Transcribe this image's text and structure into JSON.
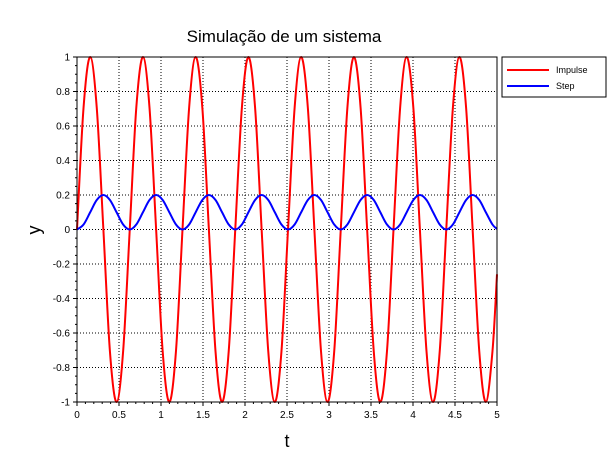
{
  "chart_data": {
    "type": "line",
    "title": "Simulação de um sistema",
    "xlabel": "t",
    "ylabel": "y",
    "xlim": [
      0,
      5
    ],
    "ylim": [
      -1,
      1
    ],
    "x_ticks": [
      "0",
      "0.5",
      "1",
      "1.5",
      "2",
      "2.5",
      "3",
      "3.5",
      "4",
      "4.5",
      "5"
    ],
    "y_ticks": [
      "-1",
      "-0.8",
      "-0.6",
      "-0.4",
      "-0.2",
      "0",
      "0.2",
      "0.4",
      "0.6",
      "0.8",
      "1"
    ],
    "grid": true,
    "legend_position": "outside-top-right",
    "series": [
      {
        "name": "Impulse",
        "color": "#ff0000",
        "x": [
          0,
          0.078,
          0.157,
          0.235,
          0.314,
          0.392,
          0.471,
          0.549,
          0.628,
          0.706,
          0.785,
          0.863,
          0.942,
          1.02,
          1.099,
          1.178,
          1.256,
          1.335,
          1.413,
          1.492,
          1.57,
          1.649,
          1.727,
          1.806,
          1.884,
          1.963,
          2.041,
          2.12,
          2.198,
          2.277,
          2.355,
          2.434,
          2.512,
          2.591,
          2.669,
          2.748,
          2.826,
          2.905,
          2.983,
          3.062,
          3.14,
          3.219,
          3.297,
          3.376,
          3.454,
          3.533,
          3.611,
          3.69,
          3.768,
          3.847,
          3.925,
          4.004,
          4.082,
          4.161,
          4.239,
          4.318,
          4.396,
          4.475,
          4.553,
          4.632,
          4.71,
          4.789,
          4.867,
          4.946,
          5.0
        ],
        "y": [
          0,
          0.707,
          1,
          0.707,
          0,
          -0.707,
          -1,
          -0.707,
          0,
          0.707,
          1,
          0.707,
          0,
          -0.707,
          -1,
          -0.707,
          0,
          0.707,
          1,
          0.707,
          0,
          -0.707,
          -1,
          -0.707,
          0,
          0.707,
          1,
          0.707,
          0,
          -0.707,
          -1,
          -0.707,
          0,
          0.707,
          1,
          0.707,
          0,
          -0.707,
          -1,
          -0.707,
          0,
          0.707,
          1,
          0.707,
          0,
          -0.707,
          -1,
          -0.707,
          0,
          0.707,
          1,
          0.707,
          0,
          -0.707,
          -1,
          -0.707,
          0,
          0.707,
          1,
          0.707,
          0,
          -0.707,
          -1,
          -0.707,
          -0.26
        ]
      },
      {
        "name": "Step",
        "color": "#0000ff",
        "x": [
          0,
          0.078,
          0.157,
          0.235,
          0.314,
          0.392,
          0.471,
          0.549,
          0.628,
          0.706,
          0.785,
          0.863,
          0.942,
          1.02,
          1.099,
          1.178,
          1.256,
          1.335,
          1.413,
          1.492,
          1.57,
          1.649,
          1.727,
          1.806,
          1.884,
          1.963,
          2.041,
          2.12,
          2.198,
          2.277,
          2.355,
          2.434,
          2.512,
          2.591,
          2.669,
          2.748,
          2.826,
          2.905,
          2.983,
          3.062,
          3.14,
          3.219,
          3.297,
          3.376,
          3.454,
          3.533,
          3.611,
          3.69,
          3.768,
          3.847,
          3.925,
          4.004,
          4.082,
          4.161,
          4.239,
          4.318,
          4.396,
          4.475,
          4.553,
          4.632,
          4.71,
          4.789,
          4.867,
          4.946,
          5.0
        ],
        "y": [
          0,
          0.029,
          0.1,
          0.171,
          0.2,
          0.171,
          0.1,
          0.029,
          0,
          0.029,
          0.1,
          0.171,
          0.2,
          0.171,
          0.1,
          0.029,
          0,
          0.029,
          0.1,
          0.171,
          0.2,
          0.171,
          0.1,
          0.029,
          0,
          0.029,
          0.1,
          0.171,
          0.2,
          0.171,
          0.1,
          0.029,
          0,
          0.029,
          0.1,
          0.171,
          0.2,
          0.171,
          0.1,
          0.029,
          0,
          0.029,
          0.1,
          0.171,
          0.2,
          0.171,
          0.1,
          0.029,
          0,
          0.029,
          0.1,
          0.171,
          0.2,
          0.171,
          0.1,
          0.029,
          0,
          0.029,
          0.1,
          0.171,
          0.2,
          0.171,
          0.1,
          0.029,
          0.003
        ]
      }
    ]
  }
}
